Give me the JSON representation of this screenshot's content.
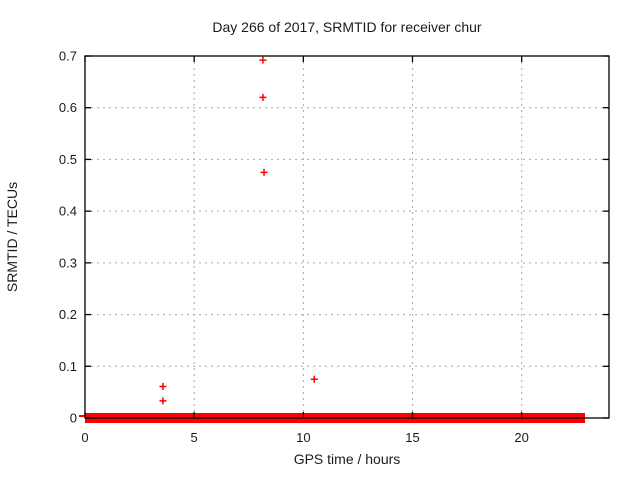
{
  "window": {
    "kind": "gnuplot-figure",
    "background": "#ffffff"
  },
  "colors": {
    "marker": "#ff0000",
    "grid": "#a8a8a8",
    "border": "#000000",
    "text": "#1a1a1a",
    "background": "#ffffff"
  },
  "chart_data": {
    "type": "scatter",
    "title": "Day 266 of 2017, SRMTID for receiver chur",
    "xlabel": "GPS time / hours",
    "ylabel": "SRMTID / TECUs",
    "xlim": [
      0,
      24
    ],
    "ylim": [
      0,
      0.7
    ],
    "xticks": [
      0,
      5,
      10,
      15,
      20
    ],
    "yticks": [
      0,
      0.1,
      0.2,
      0.3,
      0.4,
      0.5,
      0.6,
      0.7
    ],
    "grid": true,
    "grid_style": "dotted",
    "legend": "none",
    "marker_style": "plus",
    "marker_color": "#ff0000",
    "series": [
      {
        "name": "SRMTID",
        "outliers": [
          [
            3.57,
            0.061
          ],
          [
            3.57,
            0.033
          ],
          [
            8.15,
            0.692
          ],
          [
            8.15,
            0.62
          ],
          [
            8.2,
            0.475
          ],
          [
            10.5,
            0.075
          ]
        ],
        "baseline_band": {
          "x_start": 0,
          "x_end": 22.9,
          "y": 0,
          "note": "dense cluster of + markers at ~0 TECUs forming a solid red band along the x-axis"
        }
      }
    ]
  }
}
